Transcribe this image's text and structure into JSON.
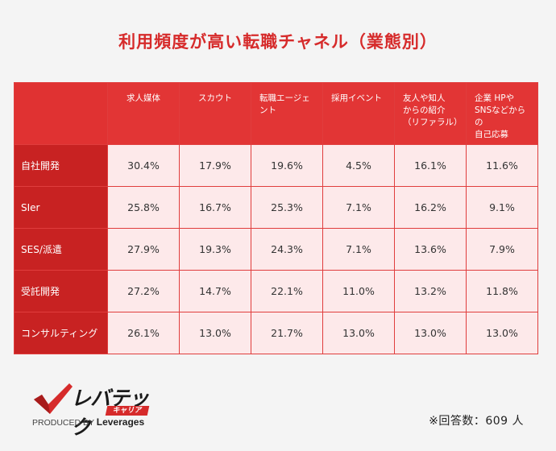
{
  "title": "利用頻度が高い転職チャネル（業態別）",
  "chart_data": {
    "type": "table",
    "columns": [
      "求人媒体",
      "スカウト",
      "転職エージェント",
      "採用イベント",
      "友人や知人からの紹介（リファラル）",
      "企業HPやSNSなどからの自己応募"
    ],
    "column_display": [
      "求人媒体",
      "スカウト",
      "転職エージェ\nント",
      "採用イベント",
      "友人や知人\nからの紹介\n（リファラル）",
      "企業 HPや\nSNSなどからの\n自己応募"
    ],
    "rows": [
      {
        "label": "自社開発",
        "values": [
          "30.4%",
          "17.9%",
          "19.6%",
          "4.5%",
          "16.1%",
          "11.6%"
        ]
      },
      {
        "label": "SIer",
        "values": [
          "25.8%",
          "16.7%",
          "25.3%",
          "7.1%",
          "16.2%",
          "9.1%"
        ]
      },
      {
        "label": "SES/派遣",
        "values": [
          "27.9%",
          "19.3%",
          "24.3%",
          "7.1%",
          "13.6%",
          "7.9%"
        ]
      },
      {
        "label": "受託開発",
        "values": [
          "27.2%",
          "14.7%",
          "22.1%",
          "11.0%",
          "13.2%",
          "11.8%"
        ]
      },
      {
        "label": "コンサルティング",
        "values": [
          "26.1%",
          "13.0%",
          "21.7%",
          "13.0%",
          "13.0%",
          "13.0%"
        ]
      }
    ]
  },
  "logo": {
    "word": "レバテック",
    "sub": "キャリア",
    "credit_prefix": "PRODUCED BY",
    "credit_brand": "Leverages"
  },
  "note": "※回答数：609 人",
  "colors": {
    "title": "#d62b2b",
    "header": "#e23535",
    "row_header": "#c82222",
    "cell_bg": "#fde9ea"
  }
}
